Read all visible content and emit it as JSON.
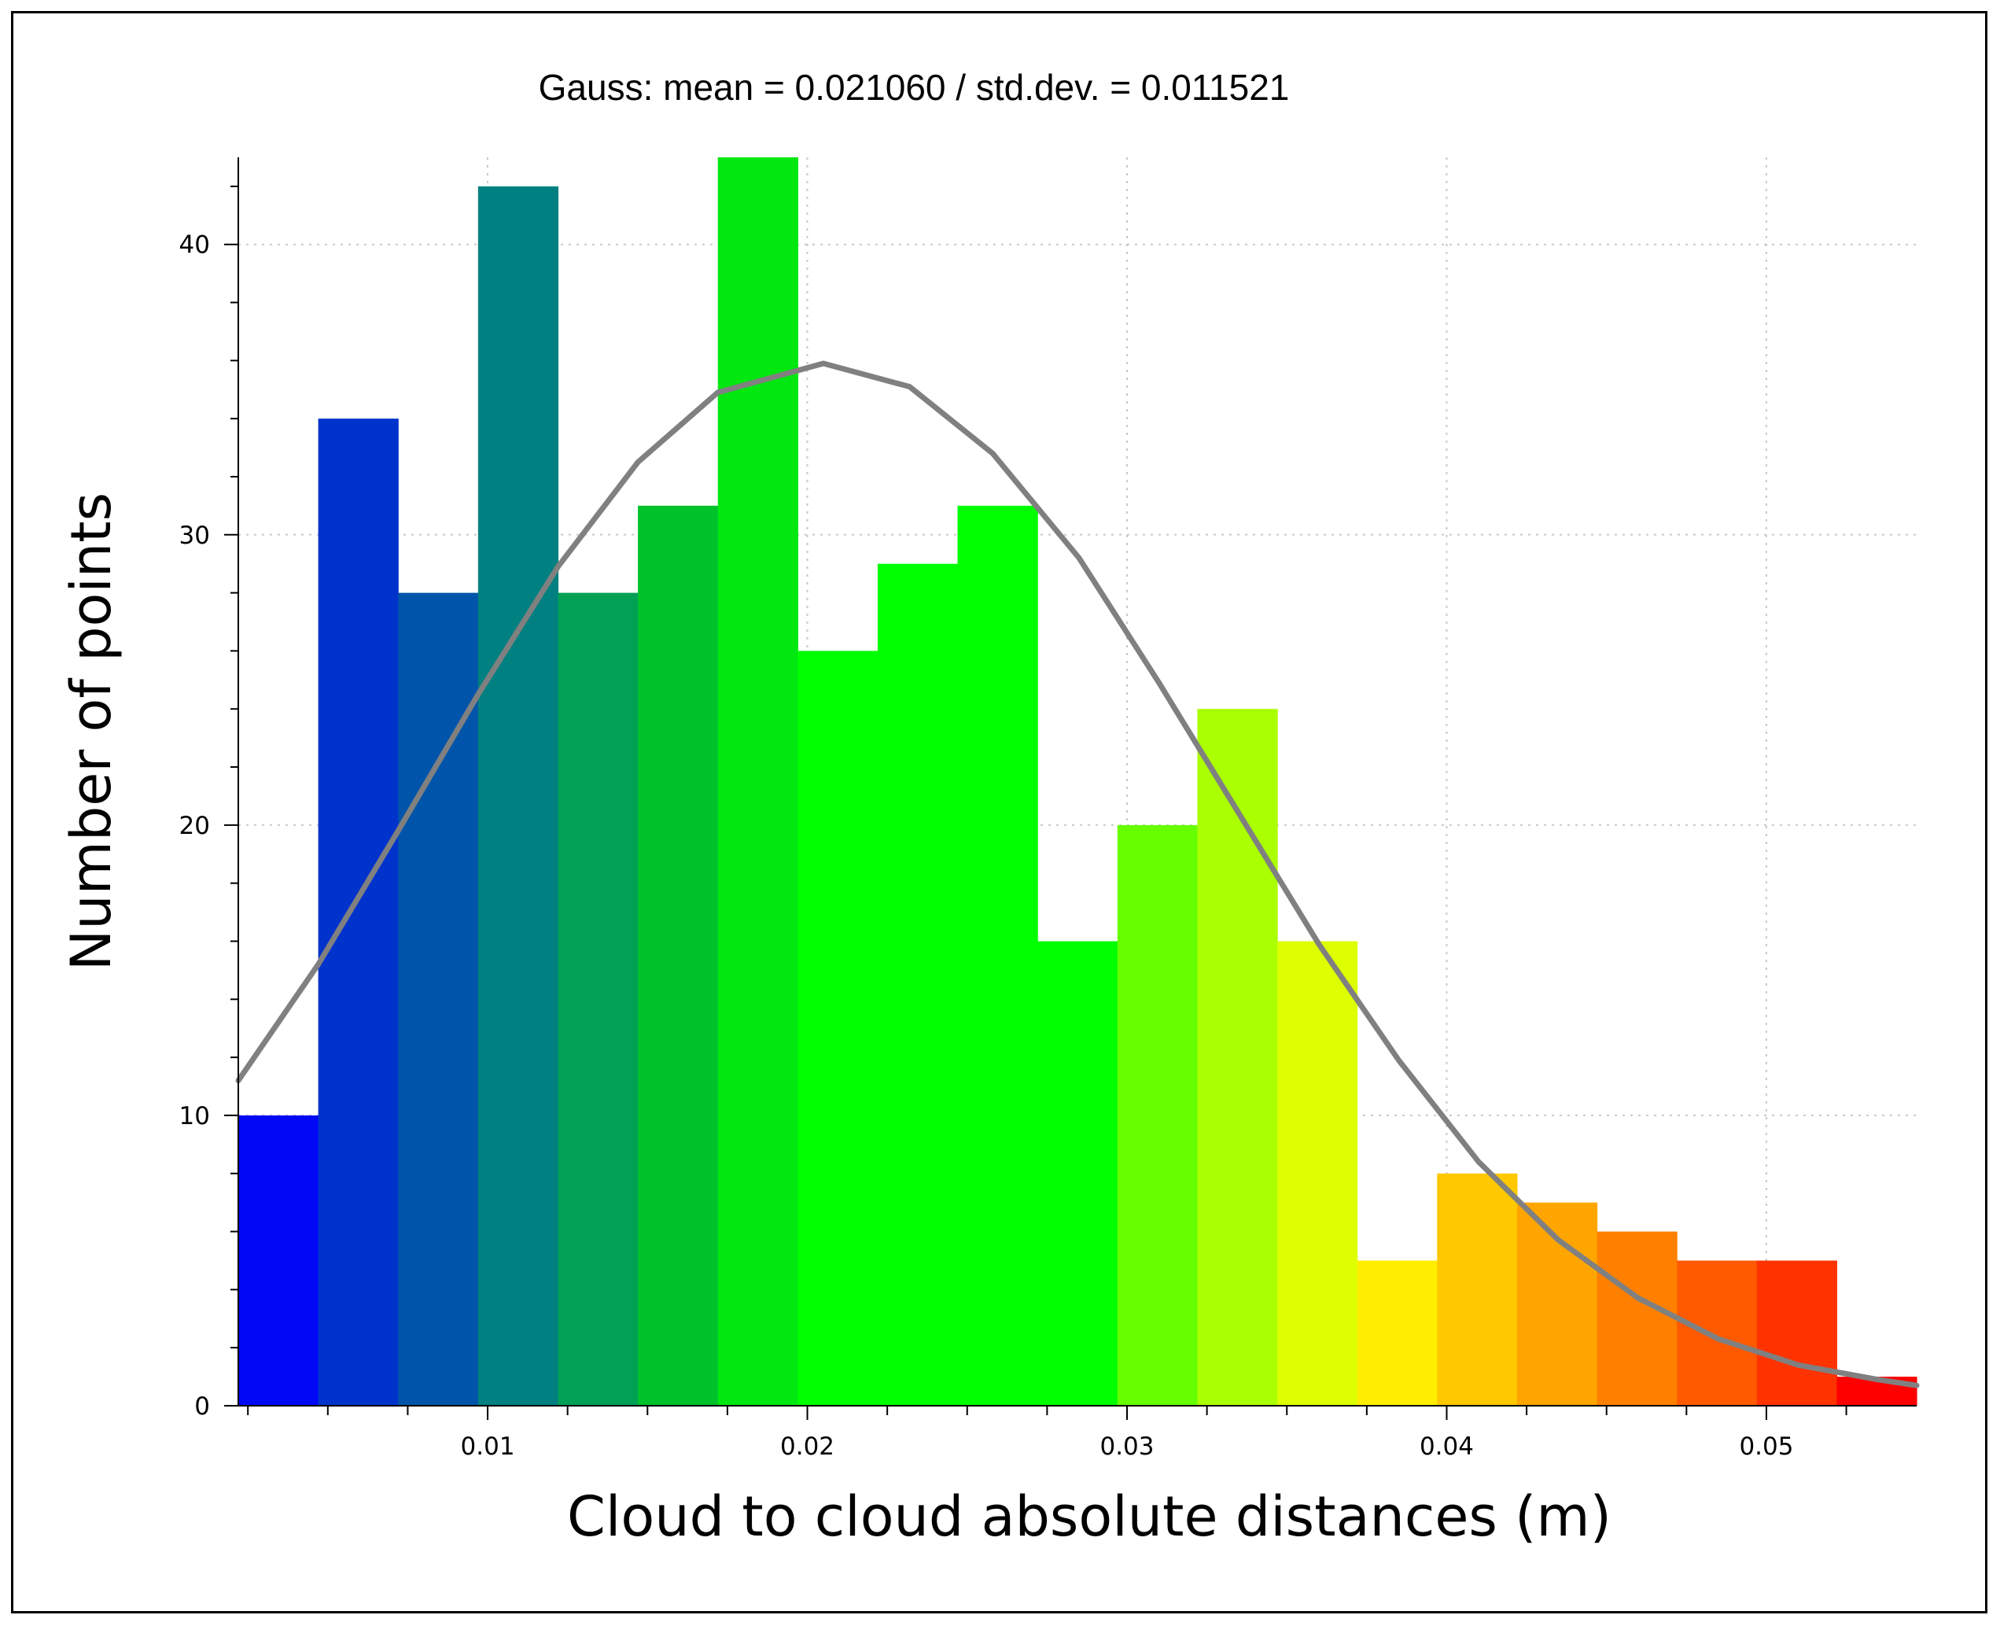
{
  "chart_data": {
    "type": "bar",
    "title": "Gauss: mean = 0.021060 / std.dev. = 0.011521",
    "xlabel": "Cloud to cloud absolute distances (m)",
    "ylabel": "Number of points",
    "xlim": [
      0.0022,
      0.0547
    ],
    "ylim": [
      0,
      43
    ],
    "x_ticks": [
      "0.01",
      "0.02",
      "0.03",
      "0.04",
      "0.05"
    ],
    "y_ticks": [
      "0",
      "10",
      "20",
      "30",
      "40"
    ],
    "grid": true,
    "bins": [
      {
        "x0": 0.0022,
        "x1": 0.0047,
        "value": 10,
        "color": "#0008f5"
      },
      {
        "x0": 0.0047,
        "x1": 0.0072,
        "value": 34,
        "color": "#0033cc"
      },
      {
        "x0": 0.0072,
        "x1": 0.0097,
        "value": 28,
        "color": "#0055aa"
      },
      {
        "x0": 0.0097,
        "x1": 0.0122,
        "value": 42,
        "color": "#008080"
      },
      {
        "x0": 0.0122,
        "x1": 0.0147,
        "value": 28,
        "color": "#00a055"
      },
      {
        "x0": 0.0147,
        "x1": 0.0172,
        "value": 31,
        "color": "#00c22b"
      },
      {
        "x0": 0.0172,
        "x1": 0.0197,
        "value": 43,
        "color": "#00e810"
      },
      {
        "x0": 0.0197,
        "x1": 0.0222,
        "value": 26,
        "color": "#00ff00"
      },
      {
        "x0": 0.0222,
        "x1": 0.0247,
        "value": 29,
        "color": "#00ff00"
      },
      {
        "x0": 0.0247,
        "x1": 0.0272,
        "value": 31,
        "color": "#00ff00"
      },
      {
        "x0": 0.0272,
        "x1": 0.0297,
        "value": 16,
        "color": "#00ff00"
      },
      {
        "x0": 0.0297,
        "x1": 0.0322,
        "value": 20,
        "color": "#66ff00"
      },
      {
        "x0": 0.0322,
        "x1": 0.0347,
        "value": 24,
        "color": "#aaff00"
      },
      {
        "x0": 0.0347,
        "x1": 0.0372,
        "value": 16,
        "color": "#ddff00"
      },
      {
        "x0": 0.0372,
        "x1": 0.0397,
        "value": 5,
        "color": "#ffee00"
      },
      {
        "x0": 0.0397,
        "x1": 0.0422,
        "value": 8,
        "color": "#ffc800"
      },
      {
        "x0": 0.0422,
        "x1": 0.0447,
        "value": 7,
        "color": "#ffa500"
      },
      {
        "x0": 0.0447,
        "x1": 0.0472,
        "value": 6,
        "color": "#ff8000"
      },
      {
        "x0": 0.0472,
        "x1": 0.0497,
        "value": 5,
        "color": "#ff5a00"
      },
      {
        "x0": 0.0497,
        "x1": 0.0522,
        "value": 5,
        "color": "#ff3300"
      },
      {
        "x0": 0.0522,
        "x1": 0.0547,
        "value": 1,
        "color": "#ff0000"
      }
    ],
    "gauss_curve": {
      "color": "#808080",
      "points": [
        [
          0.0022,
          11.2
        ],
        [
          0.0047,
          15.2
        ],
        [
          0.0072,
          19.8
        ],
        [
          0.0097,
          24.5
        ],
        [
          0.0122,
          28.9
        ],
        [
          0.0147,
          32.5
        ],
        [
          0.0172,
          34.9
        ],
        [
          0.0205,
          35.9
        ],
        [
          0.0232,
          35.1
        ],
        [
          0.0258,
          32.8
        ],
        [
          0.0285,
          29.2
        ],
        [
          0.031,
          24.9
        ],
        [
          0.0335,
          20.4
        ],
        [
          0.036,
          15.9
        ],
        [
          0.0385,
          11.9
        ],
        [
          0.041,
          8.4
        ],
        [
          0.0435,
          5.7
        ],
        [
          0.046,
          3.7
        ],
        [
          0.0485,
          2.3
        ],
        [
          0.051,
          1.4
        ],
        [
          0.0535,
          0.9
        ],
        [
          0.0547,
          0.7
        ]
      ]
    }
  }
}
